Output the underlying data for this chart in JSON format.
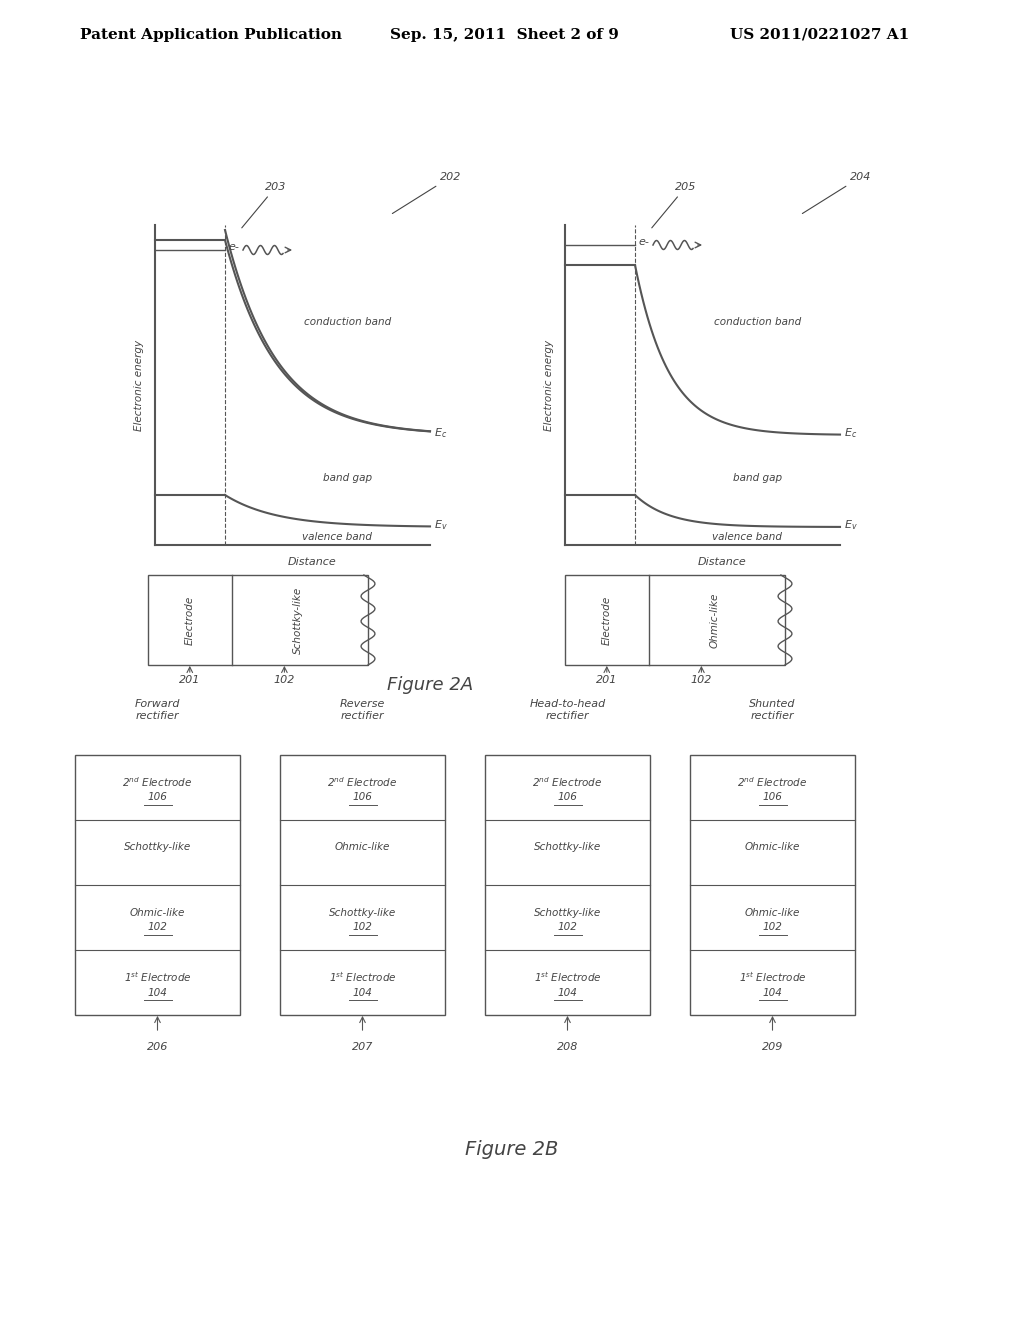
{
  "bg_color": "#ffffff",
  "header_left": "Patent Application Publication",
  "header_mid": "Sep. 15, 2011  Sheet 2 of 9",
  "header_right": "US 2011/0221027 A1",
  "fig2a_caption": "Figure 2A",
  "fig2b_caption": "Figure 2B",
  "dc": "#555555",
  "tc": "#444444"
}
